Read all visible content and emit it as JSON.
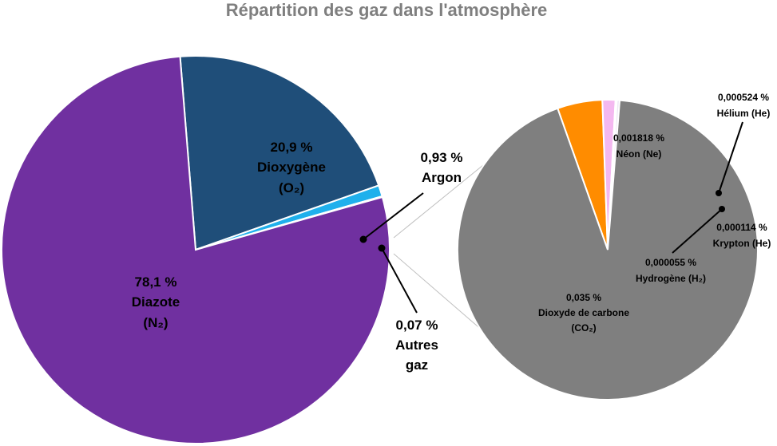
{
  "chart_data": {
    "type": "pie",
    "variant": "pie-of-pie",
    "title": "Répartition des gaz dans l'atmosphère",
    "main_pie": {
      "slices": [
        {
          "name": "Dioxygène",
          "formula": "(O₂)",
          "value": 20.9,
          "label": "20,9 %",
          "color": "#1f4e79"
        },
        {
          "name": "Argon",
          "value": 0.93,
          "label": "0,93 %",
          "color": "#1fb0ec"
        },
        {
          "name": "Autres gaz",
          "value": 0.07,
          "label": "0,07 %",
          "color": "#f2c12e"
        },
        {
          "name": "Diazote",
          "formula": "(N₂)",
          "value": 78.1,
          "label": "78,1 %",
          "color": "#7030a0"
        }
      ]
    },
    "secondary_pie": {
      "slices": [
        {
          "name": "Néon (Ne)",
          "value": 0.001818,
          "label": "0,001818 %",
          "color": "#ff8c00"
        },
        {
          "name": "Hélium (He)",
          "value": 0.000524,
          "label": "0,000524 %",
          "color": "#f4b8f0"
        },
        {
          "name": "Hydrogène (H₂)",
          "value": 5.5e-05,
          "label": "0,000055 %",
          "color": "#8b2a4e"
        },
        {
          "name": "Krypton (He)",
          "value": 0.000114,
          "label": "0,000114 %",
          "color": "#ece6f4"
        },
        {
          "name": "Dioxyde de carbone",
          "formula": "(CO₂)",
          "value": 0.035,
          "label": "0,035 %",
          "color": "#7f7f7f"
        }
      ]
    }
  },
  "labels": {
    "argon_value": "0,93 %",
    "argon_name": "Argon",
    "autres_value": "0,07 %",
    "autres_name_1": "Autres",
    "autres_name_2": "gaz"
  }
}
